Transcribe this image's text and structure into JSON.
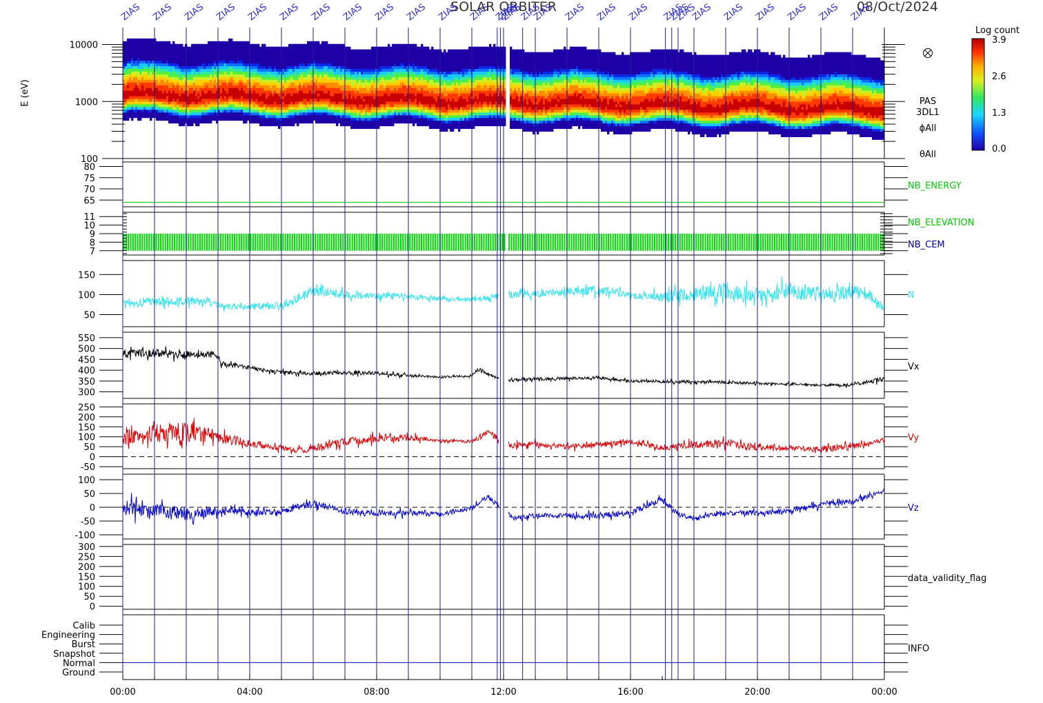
{
  "title": "SOLAR ORBITER",
  "date": "08/Oct/2024",
  "marker_label": "ZIAS",
  "marker_hours": [
    0.0,
    1.0,
    2.0,
    3.0,
    4.0,
    5.0,
    6.0,
    7.0,
    8.0,
    9.0,
    10.0,
    11.0,
    11.8,
    11.9,
    12.0,
    12.6,
    13.0,
    14.0,
    15.0,
    16.0,
    17.1,
    17.3,
    17.5,
    18.0,
    19.0,
    20.0,
    21.0,
    22.0,
    23.0
  ],
  "spectrogram": {
    "ylabel": "E (eV)",
    "y_ticks": [
      "10000",
      "1000",
      "100"
    ],
    "colorbar_title": "Log count",
    "colorbar_ticks": [
      "3.9",
      "2.6",
      "1.3",
      "0.0"
    ],
    "side_labels": [
      "PAS",
      "3DL1",
      "ϕAll",
      "θAll"
    ],
    "flux_peak_energy_start_ev": 1300,
    "flux_peak_energy_end_ev": 700
  },
  "chart_data": [
    {
      "type": "line",
      "name": "NB_ENERGY",
      "yticks": [
        "80",
        "75",
        "70",
        "65"
      ],
      "ylim": [
        62,
        82
      ],
      "values": [
        64
      ],
      "color": "#00cc00"
    },
    {
      "type": "bar",
      "name": "NB_ELEVATION",
      "secondary_label": "NB_CEM",
      "yticks": [
        "11",
        "10",
        "9",
        "8",
        "7"
      ],
      "ylim": [
        6.5,
        11.5
      ],
      "range": [
        7,
        9
      ],
      "color": "#00dd00",
      "label_color": "#00cc00",
      "secondary_color": "#0000aa"
    },
    {
      "type": "line",
      "name": "N",
      "yticks": [
        "150",
        "100",
        "50"
      ],
      "ylim": [
        20,
        185
      ],
      "color": "#33e4ee",
      "x": [
        0,
        1,
        2,
        2.8,
        3.2,
        4,
        5,
        5.5,
        6,
        7,
        8,
        9,
        10,
        11,
        11.8,
        12.2,
        13,
        14,
        15,
        16,
        17,
        18,
        19,
        20,
        21,
        22,
        23,
        23.5,
        24
      ],
      "values": [
        75,
        82,
        85,
        80,
        70,
        70,
        72,
        90,
        110,
        100,
        98,
        95,
        90,
        88,
        95,
        100,
        102,
        108,
        112,
        100,
        95,
        102,
        110,
        100,
        108,
        102,
        106,
        100,
        65
      ],
      "noise": [
        12,
        12,
        12,
        12,
        8,
        8,
        12,
        14,
        14,
        12,
        10,
        8,
        6,
        6,
        8,
        10,
        10,
        12,
        14,
        10,
        14,
        20,
        24,
        18,
        24,
        18,
        20,
        16,
        8
      ]
    },
    {
      "type": "line",
      "name": "Vx",
      "yticks": [
        "550",
        "500",
        "450",
        "400",
        "350",
        "300"
      ],
      "ylim": [
        270,
        575
      ],
      "color": "#000000",
      "x": [
        0,
        1,
        2,
        2.95,
        3.1,
        4,
        5,
        6,
        7,
        8,
        9,
        10,
        11,
        11.2,
        12.0,
        13,
        14,
        15,
        16,
        17,
        18,
        19,
        20,
        21,
        22,
        23,
        24
      ],
      "values": [
        475,
        480,
        470,
        470,
        430,
        410,
        390,
        385,
        388,
        385,
        375,
        368,
        375,
        405,
        350,
        360,
        362,
        365,
        350,
        348,
        345,
        345,
        338,
        335,
        330,
        333,
        360
      ],
      "noise": [
        22,
        22,
        22,
        20,
        12,
        10,
        10,
        10,
        10,
        10,
        8,
        5,
        6,
        10,
        8,
        8,
        8,
        8,
        7,
        8,
        8,
        8,
        6,
        6,
        6,
        8,
        14
      ]
    },
    {
      "type": "line",
      "name": "Vy",
      "yticks": [
        "250",
        "200",
        "150",
        "100",
        "50",
        "0",
        "-50"
      ],
      "ylim": [
        -60,
        265
      ],
      "zero_line": 0,
      "color": "#dd0000",
      "x": [
        0,
        1,
        2,
        3,
        4,
        5,
        5.5,
        6,
        7,
        8,
        9,
        10,
        11,
        11.5,
        12.2,
        13,
        14,
        15,
        16,
        17,
        18,
        19,
        20,
        21,
        22,
        23,
        24
      ],
      "values": [
        95,
        120,
        130,
        100,
        65,
        45,
        30,
        40,
        75,
        90,
        95,
        80,
        75,
        120,
        55,
        65,
        50,
        60,
        75,
        45,
        60,
        70,
        45,
        45,
        35,
        55,
        85
      ],
      "noise": [
        45,
        55,
        55,
        35,
        20,
        15,
        15,
        20,
        22,
        22,
        18,
        8,
        8,
        20,
        15,
        15,
        15,
        15,
        15,
        14,
        20,
        22,
        18,
        14,
        18,
        20,
        12
      ]
    },
    {
      "type": "line",
      "name": "Vz",
      "yticks": [
        "100",
        "50",
        "0",
        "-50",
        "-100"
      ],
      "ylim": [
        -115,
        120
      ],
      "zero_line": 0,
      "color": "#0000cc",
      "x": [
        0,
        1,
        2,
        3,
        4,
        5,
        6,
        7,
        8,
        9,
        10,
        11,
        11.5,
        12.3,
        13,
        14,
        15,
        16,
        17,
        17.5,
        18,
        19,
        20,
        21,
        22,
        23,
        24
      ],
      "values": [
        0,
        -15,
        -25,
        -10,
        -20,
        -15,
        15,
        -15,
        -25,
        -20,
        -25,
        -5,
        40,
        -40,
        -30,
        -30,
        -30,
        -20,
        30,
        -25,
        -40,
        -20,
        -20,
        -15,
        10,
        20,
        60
      ],
      "noise": [
        30,
        35,
        25,
        18,
        12,
        12,
        15,
        12,
        12,
        12,
        10,
        8,
        10,
        10,
        10,
        10,
        12,
        12,
        12,
        10,
        10,
        10,
        10,
        10,
        12,
        12,
        8
      ]
    },
    {
      "type": "line",
      "name": "data_validity_flag",
      "yticks": [
        "300",
        "250",
        "200",
        "150",
        "100",
        "50",
        "0"
      ],
      "ylim": [
        -15,
        310
      ],
      "values": [],
      "color": "#000000"
    },
    {
      "type": "table",
      "name": "INFO",
      "yticks": [
        "Calib",
        "Engineering",
        "Burst",
        "Snapshot",
        "Normal",
        "Ground"
      ],
      "values": []
    }
  ],
  "xaxis": {
    "ticks": [
      "00:00",
      "04:00",
      "08:00",
      "12:00",
      "16:00",
      "20:00",
      "00:00"
    ],
    "hours": [
      0,
      4,
      8,
      12,
      16,
      20,
      24
    ],
    "xlim": [
      0,
      24
    ]
  }
}
